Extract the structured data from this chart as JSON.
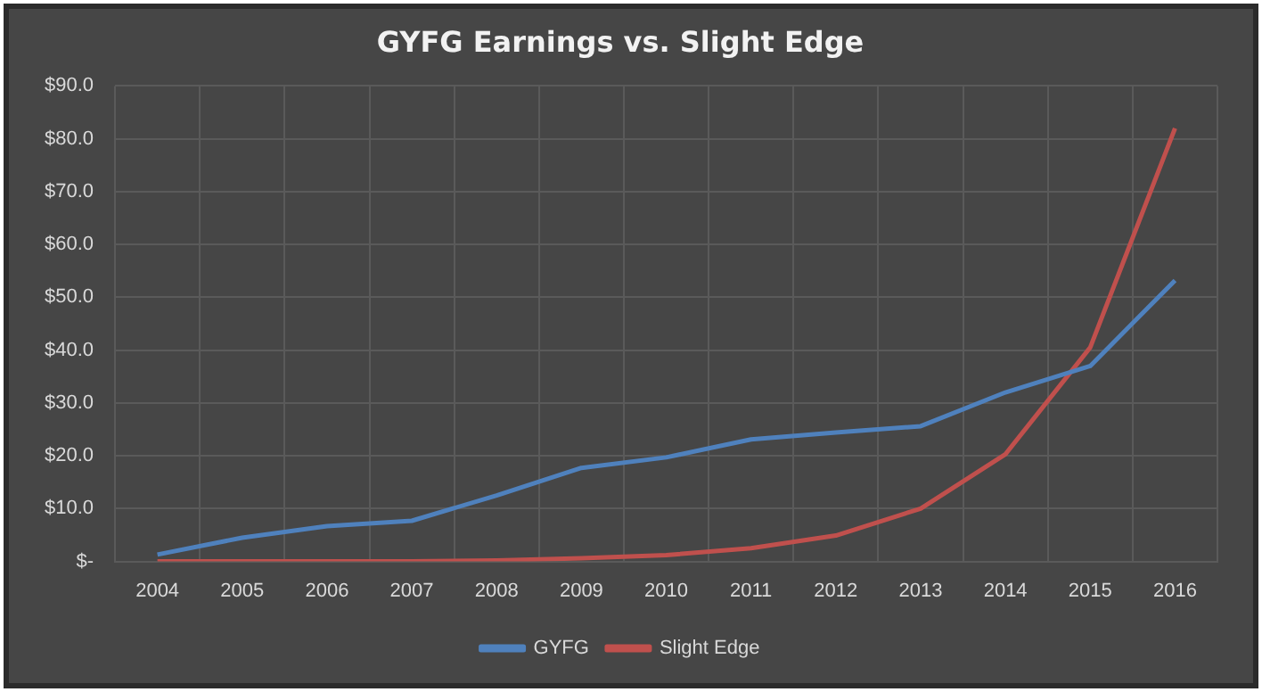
{
  "chart_data": {
    "type": "line",
    "title": "GYFG Earnings vs. Slight Edge",
    "categories": [
      "2004",
      "2005",
      "2006",
      "2007",
      "2008",
      "2009",
      "2010",
      "2011",
      "2012",
      "2013",
      "2014",
      "2015",
      "2016"
    ],
    "series": [
      {
        "name": "GYFG",
        "color": "#4f81bd",
        "values": [
          1.3,
          4.5,
          6.7,
          7.7,
          12.5,
          17.7,
          19.7,
          23.1,
          24.4,
          25.6,
          32,
          37,
          53.2
        ]
      },
      {
        "name": "Slight Edge",
        "color": "#c0504d",
        "values": [
          0,
          0,
          0,
          0,
          0.2,
          0.6,
          1.2,
          2.5,
          4.9,
          10,
          20.3,
          40.5,
          82
        ]
      }
    ],
    "ylim": [
      0,
      90
    ],
    "yticks": [
      {
        "value": 0,
        "label": "$-"
      },
      {
        "value": 10,
        "label": "$10.0"
      },
      {
        "value": 20,
        "label": "$20.0"
      },
      {
        "value": 30,
        "label": "$30.0"
      },
      {
        "value": 40,
        "label": "$40.0"
      },
      {
        "value": 50,
        "label": "$50.0"
      },
      {
        "value": 60,
        "label": "$60.0"
      },
      {
        "value": 70,
        "label": "$70.0"
      },
      {
        "value": 80,
        "label": "$80.0"
      },
      {
        "value": 90,
        "label": "$90.0"
      }
    ],
    "grid": true,
    "legend": "bottom",
    "marker": "none",
    "line_style": "solid"
  }
}
